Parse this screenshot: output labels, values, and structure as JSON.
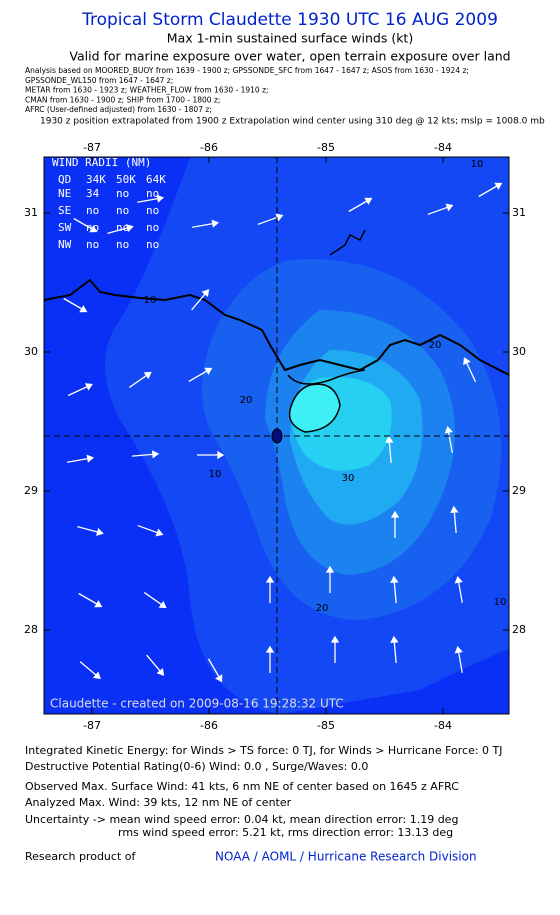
{
  "header": {
    "title": "Tropical Storm Claudette 1930 UTC 16 AUG 2009",
    "subtitle": [
      "Max 1-min sustained surface winds (kt)",
      "Valid for marine exposure over water, open terrain exposure over land"
    ],
    "analysis": [
      "Analysis based on  MOORED_BUOY from 1639 - 1900 z;  GPSSONDE_SFC from 1647 - 1647 z;  ASOS from 1630 - 1924 z;",
      "GPSSONDE_WL150 from 1647 - 1647 z;",
      "METAR from 1630 - 1923 z;  WEATHER_FLOW from 1630 - 1910 z;",
      "CMAN from 1630 - 1900 z;  SHIP from 1700 - 1800 z;",
      "AFRC  (User-defined adjusted) from 1630 - 1807 z;"
    ],
    "position_note": "1930 z position extrapolated from 1900 z Extrapolation wind center using 310 deg @ 12 kts; mslp = 1008.0 mb"
  },
  "map": {
    "lon_ticks": [
      -87,
      -86,
      -85,
      -84
    ],
    "lat_ticks": [
      31,
      30,
      29,
      28
    ],
    "contour_labels": [
      "10",
      "20",
      "10",
      "30",
      "20",
      "10",
      "20",
      "10"
    ],
    "wind_radii": {
      "title": "WIND RADII (NM)",
      "header": [
        "QD",
        "34K",
        "50K",
        "64K"
      ],
      "rows": [
        [
          "NE",
          "34",
          "no",
          "no"
        ],
        [
          "SE",
          "no",
          "no",
          "no"
        ],
        [
          "SW",
          "no",
          "no",
          "no"
        ],
        [
          "NW",
          "no",
          "no",
          "no"
        ]
      ]
    },
    "credit": "Claudette - created on 2009-08-16 19:28:32 UTC"
  },
  "footer": {
    "lines": [
      "Integrated Kinetic Energy:  for Winds > TS force: 0 TJ,  for Winds > Hurricane Force: 0 TJ",
      "Destructive Potential Rating(0-6)   Wind: 0.0 , Surge/Waves: 0.0",
      "Observed Max. Surface Wind: 41 kts, 6 nm NE of center based on 1645 z AFRC",
      "Analyzed Max. Wind: 39 kts, 12 nm NE of center",
      "Uncertainty -> mean wind speed error: 0.04 kt,   mean direction error: 1.19 deg",
      "rms wind speed error: 5.21 kt,   rms direction error: 13.13 deg"
    ],
    "product_label": "Research product of",
    "product_org": "NOAA / AOML / Hurricane Research Division"
  }
}
